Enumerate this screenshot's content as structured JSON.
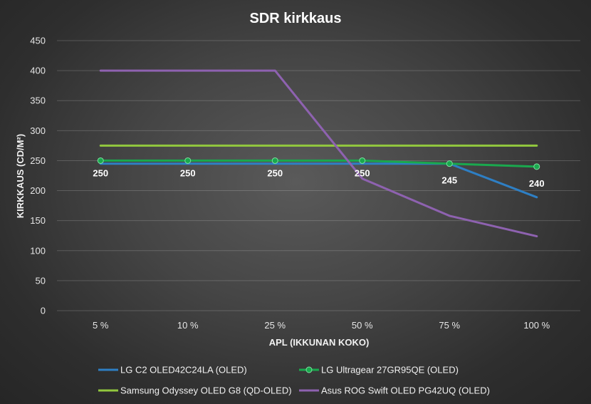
{
  "chart_data": {
    "type": "line",
    "title": "SDR kirkkaus",
    "xlabel": "APL (IKKUNAN KOKO)",
    "ylabel": "KIRKKAUS (CD/M²)",
    "categories": [
      "5 %",
      "10 %",
      "25 %",
      "50 %",
      "75 %",
      "100 %"
    ],
    "ylim": [
      0,
      450
    ],
    "yticks": [
      0,
      50,
      100,
      150,
      200,
      250,
      300,
      350,
      400,
      450
    ],
    "grid": true,
    "legend_position": "bottom",
    "series": [
      {
        "name": "LG C2 OLED42C24LA (OLED)",
        "color": "#2e7fc4",
        "marker": false,
        "values": [
          245,
          245,
          245,
          245,
          245,
          189
        ]
      },
      {
        "name": "LG Ultragear 27GR95QE (OLED)",
        "color": "#1aa84e",
        "marker": true,
        "values": [
          250,
          250,
          250,
          250,
          245,
          240
        ],
        "data_labels": [
          "250",
          "250",
          "250",
          "250",
          "245",
          "240"
        ]
      },
      {
        "name": "Samsung Odyssey OLED G8 (QD-OLED)",
        "color": "#92c83e",
        "marker": false,
        "values": [
          275,
          275,
          275,
          275,
          275,
          275
        ]
      },
      {
        "name": "Asus ROG Swift OLED PG42UQ (OLED)",
        "color": "#8e62b0",
        "marker": false,
        "values": [
          400,
          400,
          400,
          220,
          158,
          124
        ]
      }
    ]
  }
}
